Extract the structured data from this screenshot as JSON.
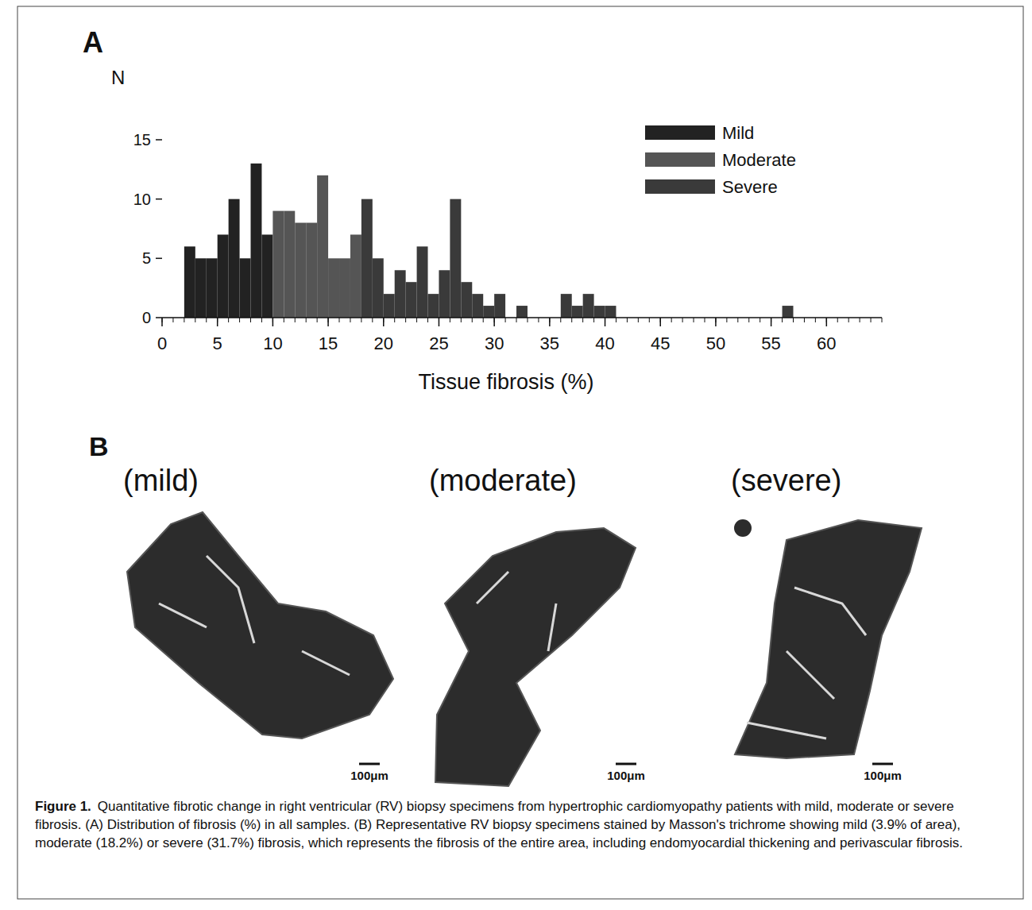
{
  "chart_data": {
    "type": "histogram",
    "x_label": "Tissue fibrosis (%)",
    "y_label": "N",
    "bins": [
      2,
      3,
      4,
      5,
      6,
      7,
      8,
      9,
      10,
      11,
      12,
      13,
      14,
      15,
      16,
      17,
      18,
      19,
      20,
      21,
      22,
      23,
      24,
      25,
      26,
      27,
      28,
      29,
      30,
      31,
      32,
      33,
      34,
      35,
      36,
      37,
      38,
      39,
      40,
      41,
      42,
      43,
      44,
      45,
      46,
      47,
      48,
      49,
      50,
      51,
      52,
      53,
      54,
      55,
      56,
      57
    ],
    "series": [
      {
        "name": "Mild",
        "color": "#222222",
        "values": [
          6,
          5,
          5,
          7,
          10,
          5,
          13,
          7,
          0,
          0,
          0,
          0,
          0,
          0,
          0,
          0,
          0,
          0,
          0,
          0,
          0,
          0,
          0,
          0,
          0,
          0,
          0,
          0,
          0,
          0,
          0,
          0,
          0,
          0,
          0,
          0,
          0,
          0,
          0,
          0,
          0,
          0,
          0,
          0,
          0,
          0,
          0,
          0,
          0,
          0,
          0,
          0,
          0,
          0,
          0
        ]
      },
      {
        "name": "Moderate",
        "color": "#555555",
        "values": [
          0,
          0,
          0,
          0,
          0,
          0,
          0,
          0,
          9,
          9,
          8,
          8,
          12,
          5,
          5,
          7,
          0,
          0,
          0,
          0,
          0,
          0,
          0,
          0,
          0,
          0,
          0,
          0,
          0,
          0,
          0,
          0,
          0,
          0,
          0,
          0,
          0,
          0,
          0,
          0,
          0,
          0,
          0,
          0,
          0,
          0,
          0,
          0,
          0,
          0,
          0,
          0,
          0,
          0,
          0
        ]
      },
      {
        "name": "Severe",
        "color": "#3a3a3a",
        "values": [
          0,
          0,
          0,
          0,
          0,
          0,
          0,
          0,
          0,
          0,
          0,
          0,
          0,
          0,
          0,
          0,
          10,
          5,
          2,
          4,
          3,
          6,
          2,
          4,
          10,
          3,
          2,
          1,
          2,
          0,
          1,
          0,
          0,
          0,
          2,
          1,
          2,
          1,
          1,
          0,
          0,
          0,
          0,
          0,
          0,
          0,
          0,
          0,
          0,
          0,
          0,
          0,
          0,
          0,
          1
        ]
      }
    ],
    "stacked": true,
    "xlim": [
      0,
      65
    ],
    "xticks": [
      0,
      5,
      10,
      15,
      20,
      25,
      30,
      35,
      40,
      45,
      50,
      55,
      60
    ],
    "ylim": [
      0,
      15
    ],
    "yticks": [
      0,
      5,
      10,
      15
    ],
    "legend": "top-right",
    "grid": false
  },
  "panel_a_label": "A",
  "panel_b": {
    "label": "B",
    "images": [
      {
        "label": "(mild)",
        "scale_bar": "100μm"
      },
      {
        "label": "(moderate)",
        "scale_bar": "100μm"
      },
      {
        "label": "(severe)",
        "scale_bar": "100μm"
      }
    ]
  },
  "caption": {
    "label": "Figure 1.",
    "text": "Quantitative fibrotic change in right ventricular (RV) biopsy specimens from hypertrophic cardiomyopathy patients with mild, moderate or severe fibrosis. (A) Distribution of fibrosis (%) in all samples. (B) Representative RV biopsy specimens stained by Masson's trichrome showing mild (3.9% of area), moderate (18.2%) or severe (31.7%) fibrosis, which represents the fibrosis of the entire area, including endomyocardial thickening and perivascular fibrosis."
  }
}
